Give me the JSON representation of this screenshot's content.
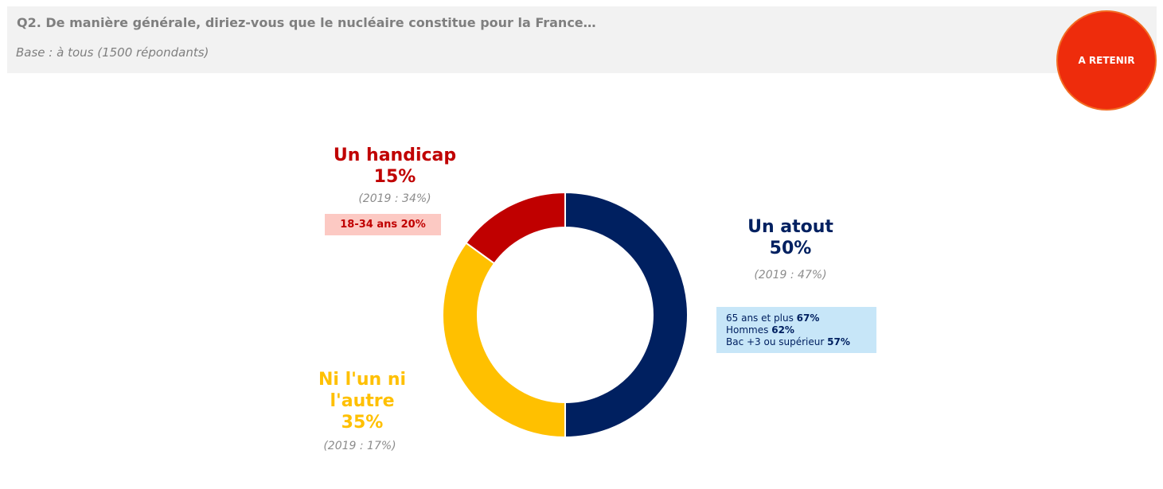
{
  "header": {
    "question": "Q2. De manière générale, diriez-vous que le nucléaire constitue pour la France…",
    "base": "Base : à tous (1500 répondants)"
  },
  "retenir_button": {
    "label": "A RETENIR",
    "color": "#ee2c0c"
  },
  "chart_data": {
    "type": "pie",
    "donut": true,
    "categories": [
      "Un atout",
      "Ni l'un ni l'autre",
      "Un handicap"
    ],
    "values": [
      50,
      35,
      15
    ],
    "unit": "%",
    "colors": [
      "#002060",
      "#ffc000",
      "#c00000"
    ],
    "slices": [
      {
        "name": "Un atout",
        "value": 50,
        "value_label": "50%",
        "color": "#002060",
        "comparison": "(2019 : 47%)",
        "highlights": [
          {
            "label": "65 ans et plus",
            "value": "67%"
          },
          {
            "label": "Hommes",
            "value": "62%"
          },
          {
            "label": "Bac +3 ou supérieur",
            "value": "57%"
          }
        ]
      },
      {
        "name": "Ni l'un ni l'autre",
        "name_lines": [
          "Ni l'un ni",
          "l'autre"
        ],
        "value": 35,
        "value_label": "35%",
        "color": "#ffc000",
        "comparison": "(2019 : 17%)"
      },
      {
        "name": "Un handicap",
        "value": 15,
        "value_label": "15%",
        "color": "#c00000",
        "comparison": "(2019 : 34%)",
        "highlights": [
          {
            "label": "18-34 ans",
            "value": "20%"
          }
        ]
      }
    ],
    "start_angle": "top, clockwise",
    "legend": "none"
  }
}
